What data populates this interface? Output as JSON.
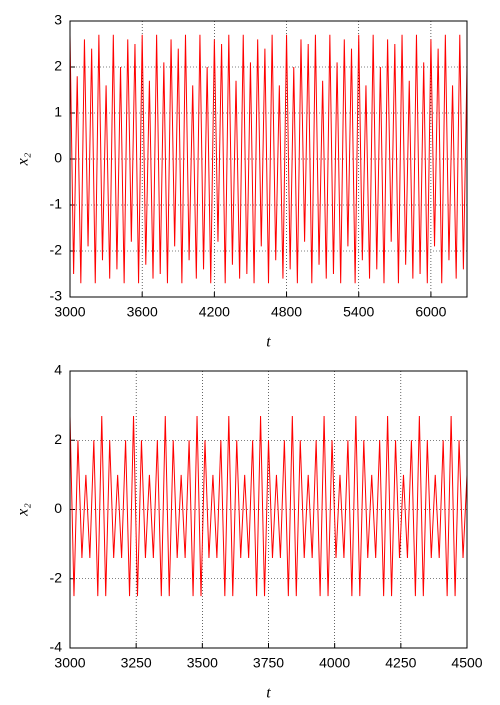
{
  "chart_data": [
    {
      "type": "line",
      "xlabel": "t",
      "ylabel": "x₂",
      "x": [
        3000,
        3030,
        3060,
        3090,
        3120,
        3150,
        3180,
        3210,
        3240,
        3270,
        3300,
        3330,
        3360,
        3390,
        3420,
        3450,
        3480,
        3510,
        3540,
        3570,
        3600,
        3630,
        3660,
        3690,
        3720,
        3750,
        3780,
        3810,
        3840,
        3870,
        3900,
        3930,
        3960,
        3990,
        4020,
        4050,
        4080,
        4110,
        4140,
        4170,
        4200,
        4230,
        4260,
        4290,
        4320,
        4350,
        4380,
        4410,
        4440,
        4470,
        4500,
        4530,
        4560,
        4590,
        4620,
        4650,
        4680,
        4710,
        4740,
        4770,
        4800,
        4830,
        4860,
        4890,
        4920,
        4950,
        4980,
        5010,
        5040,
        5070,
        5100,
        5130,
        5160,
        5190,
        5220,
        5250,
        5280,
        5310,
        5340,
        5370,
        5400,
        5430,
        5460,
        5490,
        5520,
        5550,
        5580,
        5610,
        5640,
        5670,
        5700,
        5730,
        5760,
        5790,
        5820,
        5850,
        5880,
        5910,
        5940,
        5970,
        6000,
        6030,
        6060,
        6090,
        6120,
        6150,
        6180,
        6210,
        6240,
        6270,
        6300
      ],
      "series": [
        {
          "color": "#ff0000",
          "values": [
            2.7,
            -2.5,
            1.8,
            -2.7,
            2.6,
            -1.9,
            2.4,
            -2.7,
            2.7,
            -2.2,
            1.6,
            -2.6,
            2.7,
            -2.4,
            2.0,
            -2.7,
            2.6,
            -1.8,
            2.5,
            -2.7,
            2.7,
            -2.3,
            1.7,
            -2.6,
            2.7,
            -2.5,
            2.1,
            -2.7,
            2.6,
            -1.9,
            2.4,
            -2.7,
            2.7,
            -2.2,
            1.6,
            -2.6,
            2.7,
            -2.4,
            2.0,
            -2.7,
            2.6,
            -1.8,
            2.5,
            -2.7,
            2.7,
            -2.3,
            1.7,
            -2.6,
            2.7,
            -2.5,
            2.1,
            -2.7,
            2.6,
            -1.9,
            2.4,
            -2.7,
            2.7,
            -2.2,
            1.6,
            -2.6,
            2.7,
            -2.4,
            2.0,
            -2.7,
            2.6,
            -1.8,
            2.5,
            -2.7,
            2.7,
            -2.3,
            1.7,
            -2.6,
            2.7,
            -2.5,
            2.1,
            -2.7,
            2.6,
            -1.9,
            2.4,
            -2.7,
            2.7,
            -2.2,
            1.6,
            -2.6,
            2.7,
            -2.4,
            2.0,
            -2.7,
            2.6,
            -1.8,
            2.5,
            -2.7,
            2.7,
            -2.3,
            1.7,
            -2.6,
            2.7,
            -2.5,
            2.1,
            -2.7,
            2.6,
            -1.9,
            2.4,
            -2.7,
            2.7,
            -2.2,
            1.6,
            -2.6,
            2.7,
            -2.4,
            2.0
          ]
        }
      ],
      "xlim": [
        3000,
        6300
      ],
      "xticks": [
        3000,
        3600,
        4200,
        4800,
        5400,
        6000
      ],
      "ylim": [
        -3,
        3
      ],
      "yticks": [
        -3,
        -2,
        -1,
        0,
        1,
        2,
        3
      ],
      "grid": true
    },
    {
      "type": "line",
      "xlabel": "t",
      "ylabel": "x₂",
      "x": [
        3000,
        3015,
        3030,
        3045,
        3060,
        3075,
        3090,
        3105,
        3120,
        3135,
        3150,
        3165,
        3180,
        3195,
        3210,
        3225,
        3240,
        3255,
        3270,
        3285,
        3300,
        3315,
        3330,
        3345,
        3360,
        3375,
        3390,
        3405,
        3420,
        3435,
        3450,
        3465,
        3480,
        3495,
        3510,
        3525,
        3540,
        3555,
        3570,
        3585,
        3600,
        3615,
        3630,
        3645,
        3660,
        3675,
        3690,
        3705,
        3720,
        3735,
        3750,
        3765,
        3780,
        3795,
        3810,
        3825,
        3840,
        3855,
        3870,
        3885,
        3900,
        3915,
        3930,
        3945,
        3960,
        3975,
        3990,
        4005,
        4020,
        4035,
        4050,
        4065,
        4080,
        4095,
        4110,
        4125,
        4140,
        4155,
        4170,
        4185,
        4200,
        4215,
        4230,
        4245,
        4260,
        4275,
        4290,
        4305,
        4320,
        4335,
        4350,
        4365,
        4380,
        4395,
        4410,
        4425,
        4440,
        4455,
        4470,
        4485,
        4500
      ],
      "series": [
        {
          "color": "#ff0000",
          "values": [
            2.7,
            -2.5,
            2.0,
            -1.4,
            1.0,
            -1.4,
            2.0,
            -2.5,
            2.7,
            -2.5,
            2.0,
            -1.4,
            1.0,
            -1.4,
            2.0,
            -2.5,
            2.7,
            -2.5,
            2.0,
            -1.4,
            1.0,
            -1.4,
            2.0,
            -2.5,
            2.7,
            -2.5,
            2.0,
            -1.4,
            1.0,
            -1.4,
            2.0,
            -2.5,
            2.7,
            -2.5,
            2.0,
            -1.4,
            1.0,
            -1.4,
            2.0,
            -2.5,
            2.7,
            -2.5,
            2.0,
            -1.4,
            1.0,
            -1.4,
            2.0,
            -2.5,
            2.7,
            -2.5,
            2.0,
            -1.4,
            1.0,
            -1.4,
            2.0,
            -2.5,
            2.7,
            -2.5,
            2.0,
            -1.4,
            1.0,
            -1.4,
            2.0,
            -2.5,
            2.7,
            -2.5,
            2.0,
            -1.4,
            1.0,
            -1.4,
            2.0,
            -2.5,
            2.7,
            -2.5,
            2.0,
            -1.4,
            1.0,
            -1.4,
            2.0,
            -2.5,
            2.7,
            -2.5,
            2.0,
            -1.4,
            1.0,
            -1.4,
            2.0,
            -2.5,
            2.7,
            -2.5,
            2.0,
            -1.4,
            1.0,
            -1.4,
            2.0,
            -2.5,
            2.7,
            -2.5,
            2.0,
            -1.4,
            1.0
          ]
        }
      ],
      "xlim": [
        3000,
        4500
      ],
      "xticks": [
        3000,
        3250,
        3500,
        3750,
        4000,
        4250,
        4500
      ],
      "ylim": [
        -4,
        4
      ],
      "yticks": [
        -4,
        -2,
        0,
        2,
        4
      ],
      "grid": true
    }
  ]
}
